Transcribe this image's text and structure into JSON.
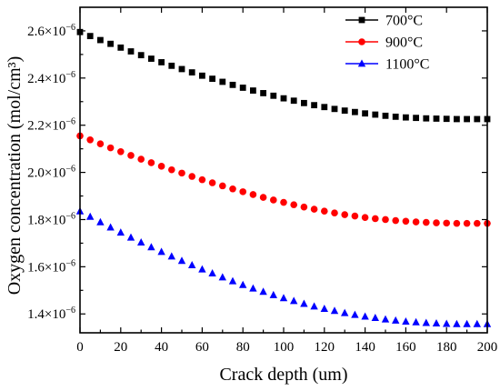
{
  "chart_data": {
    "type": "scatter",
    "xlabel": "Crack depth (um)",
    "ylabel": "Oxygen concentration (mol/cm³)",
    "xlim": [
      0,
      200
    ],
    "ylim": [
      1.32e-06,
      2.7e-06
    ],
    "x_ticks": [
      0,
      20,
      40,
      60,
      80,
      100,
      120,
      140,
      160,
      180,
      200
    ],
    "x_tick_labels": [
      "0",
      "20",
      "40",
      "60",
      "80",
      "100",
      "120",
      "140",
      "160",
      "180",
      "200"
    ],
    "y_ticks": [
      1.4e-06,
      1.6e-06,
      1.8e-06,
      2e-06,
      2.2e-06,
      2.4e-06,
      2.6e-06
    ],
    "y_tick_labels": [
      {
        "base": "1.4×10",
        "exp": "−6"
      },
      {
        "base": "1.6×10",
        "exp": "−6"
      },
      {
        "base": "1.8×10",
        "exp": "−6"
      },
      {
        "base": "2.0×10",
        "exp": "−6"
      },
      {
        "base": "2.2×10",
        "exp": "−6"
      },
      {
        "base": "2.4×10",
        "exp": "−6"
      },
      {
        "base": "2.6×10",
        "exp": "−6"
      }
    ],
    "legend_position": "top-right",
    "x": [
      0,
      5,
      10,
      15,
      20,
      25,
      30,
      35,
      40,
      45,
      50,
      55,
      60,
      65,
      70,
      75,
      80,
      85,
      90,
      95,
      100,
      105,
      110,
      115,
      120,
      125,
      130,
      135,
      140,
      145,
      150,
      155,
      160,
      165,
      170,
      175,
      180,
      185,
      190,
      195,
      200
    ],
    "series": [
      {
        "name": "700°C",
        "marker": "square",
        "color": "#000000",
        "values": [
          2.595e-06,
          2.578e-06,
          2.561e-06,
          2.545e-06,
          2.529e-06,
          2.513e-06,
          2.497e-06,
          2.482e-06,
          2.467e-06,
          2.452e-06,
          2.438e-06,
          2.424e-06,
          2.41e-06,
          2.397e-06,
          2.384e-06,
          2.371e-06,
          2.359e-06,
          2.347e-06,
          2.336e-06,
          2.325e-06,
          2.314e-06,
          2.304e-06,
          2.294e-06,
          2.285e-06,
          2.277e-06,
          2.269e-06,
          2.262e-06,
          2.256e-06,
          2.25e-06,
          2.245e-06,
          2.24e-06,
          2.236e-06,
          2.233e-06,
          2.231e-06,
          2.229e-06,
          2.228e-06,
          2.227e-06,
          2.226e-06,
          2.226e-06,
          2.226e-06,
          2.226e-06
        ]
      },
      {
        "name": "900°C",
        "marker": "circle",
        "color": "#ff0000",
        "values": [
          2.155e-06,
          2.138e-06,
          2.121e-06,
          2.104e-06,
          2.088e-06,
          2.072e-06,
          2.056e-06,
          2.041e-06,
          2.026e-06,
          2.011e-06,
          1.997e-06,
          1.983e-06,
          1.969e-06,
          1.956e-06,
          1.943e-06,
          1.93e-06,
          1.918e-06,
          1.906e-06,
          1.894e-06,
          1.883e-06,
          1.873e-06,
          1.863e-06,
          1.853e-06,
          1.844e-06,
          1.836e-06,
          1.828e-06,
          1.821e-06,
          1.815e-06,
          1.809e-06,
          1.804e-06,
          1.8e-06,
          1.796e-06,
          1.793e-06,
          1.79e-06,
          1.788e-06,
          1.786e-06,
          1.785e-06,
          1.784e-06,
          1.784e-06,
          1.784e-06,
          1.784e-06
        ]
      },
      {
        "name": "1100°C",
        "marker": "triangle",
        "color": "#0000ff",
        "values": [
          1.835e-06,
          1.812e-06,
          1.789e-06,
          1.767e-06,
          1.745e-06,
          1.724e-06,
          1.703e-06,
          1.683e-06,
          1.663e-06,
          1.644e-06,
          1.625e-06,
          1.607e-06,
          1.589e-06,
          1.572e-06,
          1.555e-06,
          1.539e-06,
          1.523e-06,
          1.508e-06,
          1.494e-06,
          1.48e-06,
          1.467e-06,
          1.455e-06,
          1.443e-06,
          1.432e-06,
          1.422e-06,
          1.413e-06,
          1.404e-06,
          1.396e-06,
          1.389e-06,
          1.383e-06,
          1.377e-06,
          1.372e-06,
          1.368e-06,
          1.365e-06,
          1.362e-06,
          1.36e-06,
          1.358e-06,
          1.357e-06,
          1.357e-06,
          1.357e-06,
          1.357e-06
        ]
      }
    ]
  }
}
